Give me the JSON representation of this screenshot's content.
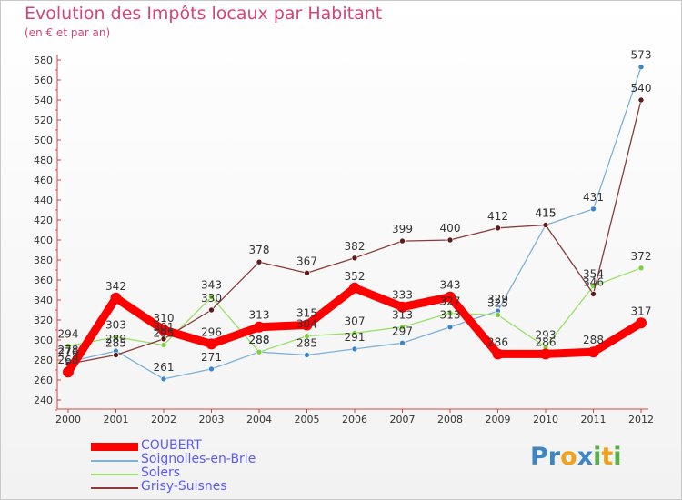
{
  "title": "Evolution des Impôts locaux par Habitant",
  "subtitle": "(en € et par an)",
  "logo": "Proxiti",
  "chart_data": {
    "type": "line",
    "title": "Evolution des Impôts locaux par Habitant",
    "subtitle": "(en € et par an)",
    "x": [
      "2000",
      "2001",
      "2002",
      "2003",
      "2004",
      "2005",
      "2006",
      "2007",
      "2008",
      "2009",
      "2010",
      "2011",
      "2012"
    ],
    "ylim": [
      240,
      580
    ],
    "yticks": [
      240,
      260,
      280,
      300,
      320,
      340,
      360,
      380,
      400,
      420,
      440,
      460,
      480,
      500,
      520,
      540,
      560,
      580
    ],
    "grid": false,
    "legend_position": "bottom-left",
    "series": [
      {
        "name": "COUBERT",
        "color": "#ff0000",
        "marker": "#ff0000",
        "values": [
          268,
          342,
          310,
          296,
          313,
          315,
          352,
          333,
          343,
          286,
          286,
          288,
          317
        ],
        "labels": [
          "268",
          "342",
          "310",
          "296",
          "313",
          "315",
          "352",
          "333",
          "343",
          "286",
          "286",
          "288",
          "317"
        ]
      },
      {
        "name": "Soignolles-en-Brie",
        "color": "#7eb0d8",
        "marker": "#3d85c6",
        "values": [
          278,
          289,
          261,
          271,
          288,
          285,
          291,
          297,
          313,
          329,
          415,
          431,
          573
        ],
        "labels": [
          "278",
          "289",
          "261",
          "271",
          "288",
          "285",
          "291",
          "297",
          "313",
          "329",
          "415",
          "431",
          "573"
        ]
      },
      {
        "name": "Solers",
        "color": "#9be06a",
        "marker": "#7ed040",
        "values": [
          294,
          303,
          295,
          343,
          288,
          304,
          307,
          313,
          327,
          325,
          293,
          354,
          372
        ],
        "labels": [
          "294",
          "303",
          "295",
          "343",
          "288",
          "304",
          "307",
          "313",
          "327",
          "325",
          "293",
          "354",
          "372"
        ]
      },
      {
        "name": "Grisy-Suisnes",
        "color": "#8a3a3a",
        "marker": "#5e1a1a",
        "values": [
          276,
          285,
          301,
          330,
          378,
          367,
          382,
          399,
          400,
          412,
          415,
          346,
          540
        ],
        "labels": [
          "276",
          "285",
          "301",
          "330",
          "378",
          "367",
          "382",
          "399",
          "400",
          "412",
          "415",
          "346",
          "540"
        ]
      }
    ]
  }
}
